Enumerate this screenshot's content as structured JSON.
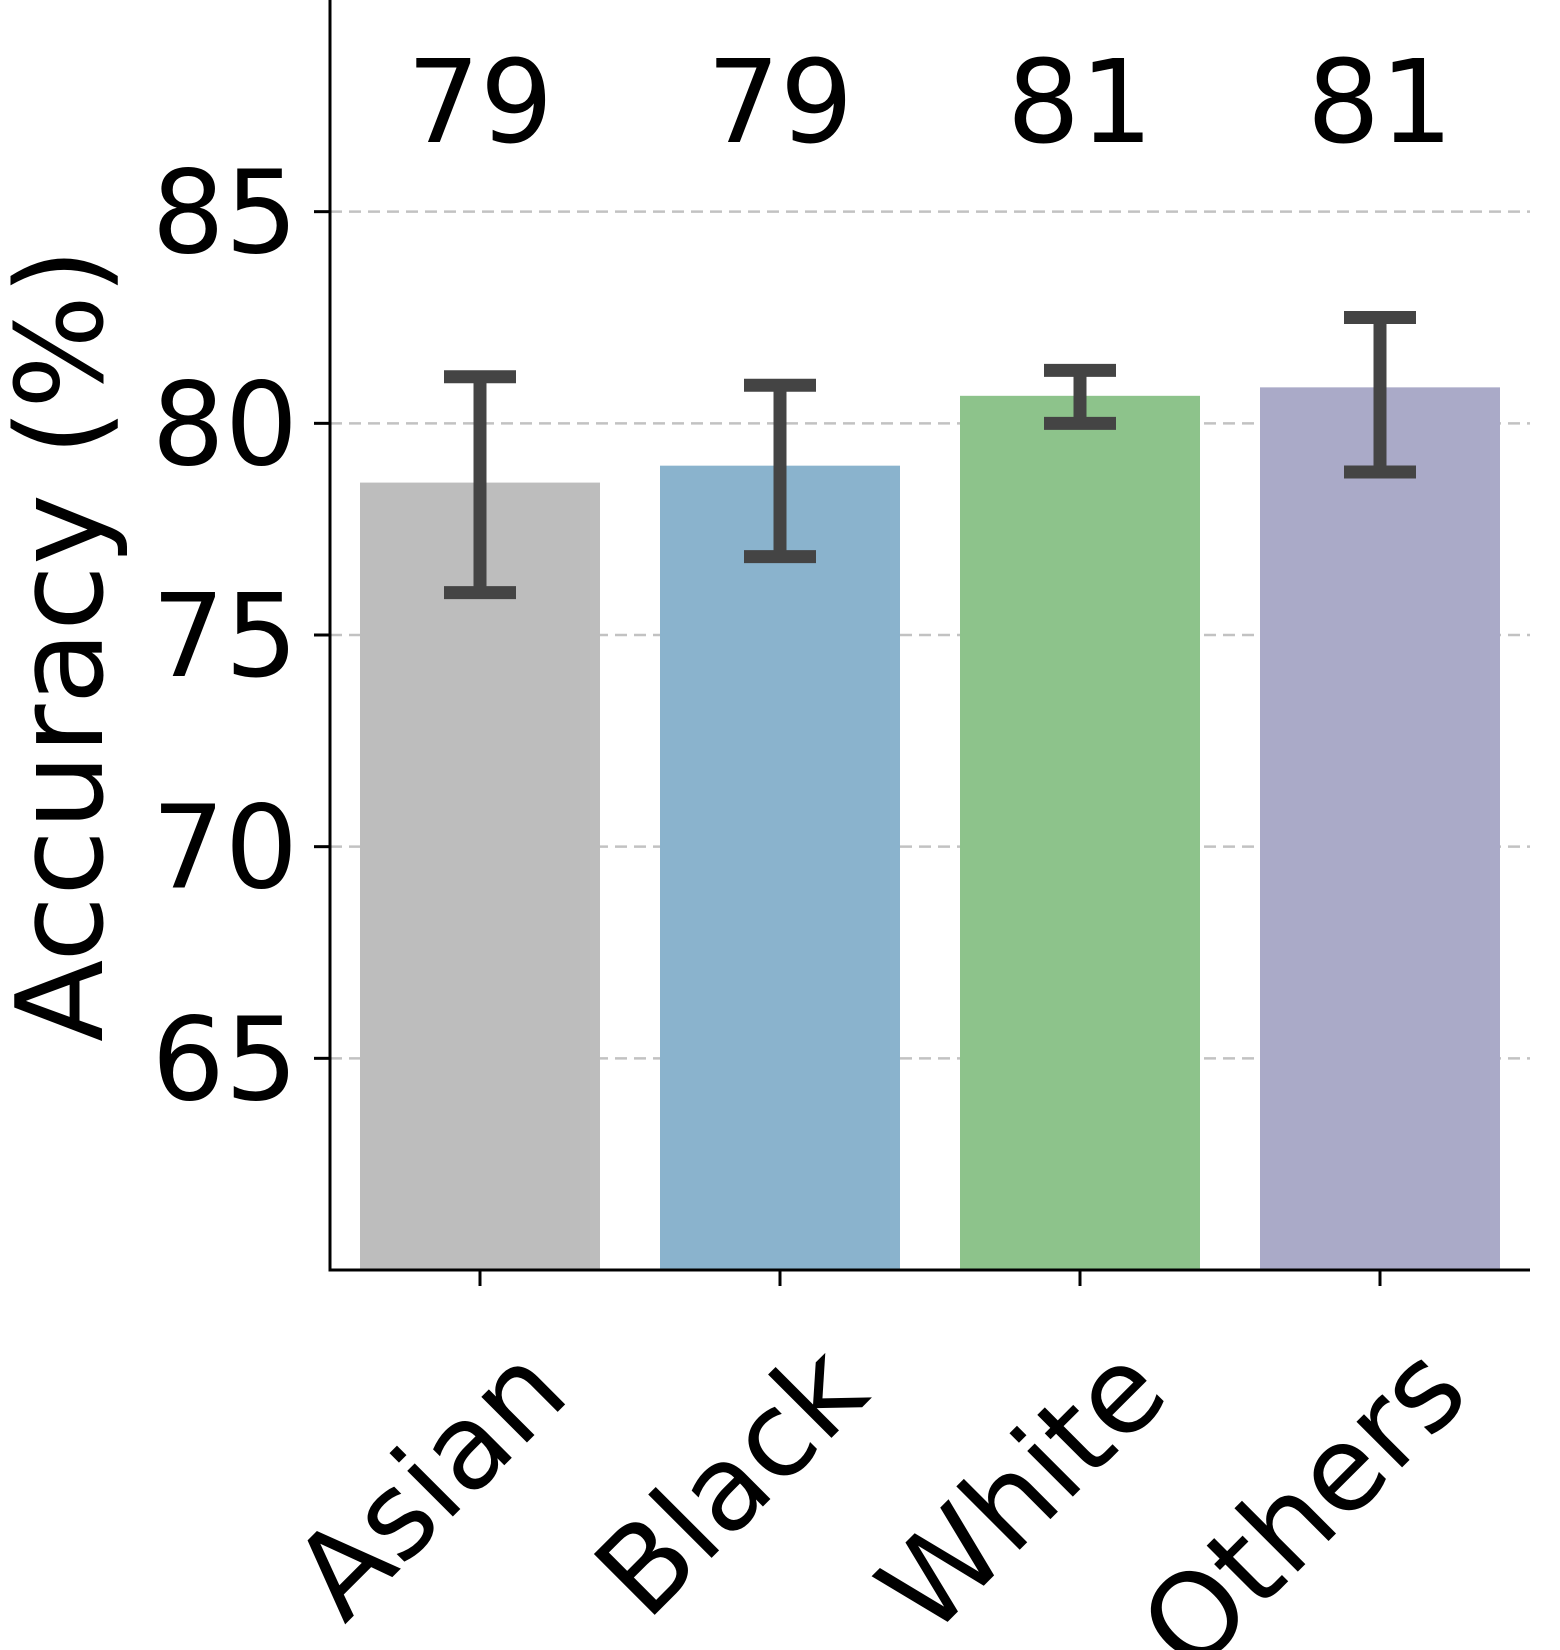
{
  "chart_data": {
    "type": "bar",
    "title": "",
    "xlabel": "",
    "ylabel": "Accuracy (%)",
    "ylim": [
      60,
      90
    ],
    "yticks": [
      65,
      70,
      75,
      80,
      85
    ],
    "grid": "y-dashed",
    "categories": [
      "Asian",
      "Black",
      "White",
      "Others"
    ],
    "values": [
      78.6,
      79.0,
      80.65,
      80.85
    ],
    "data_labels": [
      "79",
      "79",
      "81",
      "81"
    ],
    "error_bars": [
      {
        "low": 76.0,
        "high": 81.1
      },
      {
        "low": 76.85,
        "high": 80.9
      },
      {
        "low": 80.0,
        "high": 81.25
      },
      {
        "low": 78.85,
        "high": 82.5
      }
    ],
    "colors": [
      "#bdbdbd",
      "#8ab3cd",
      "#8dc38b",
      "#aaaac8"
    ],
    "error_color": "#444444",
    "grid_color": "#c2c2c2",
    "axis_color": "#000000"
  }
}
